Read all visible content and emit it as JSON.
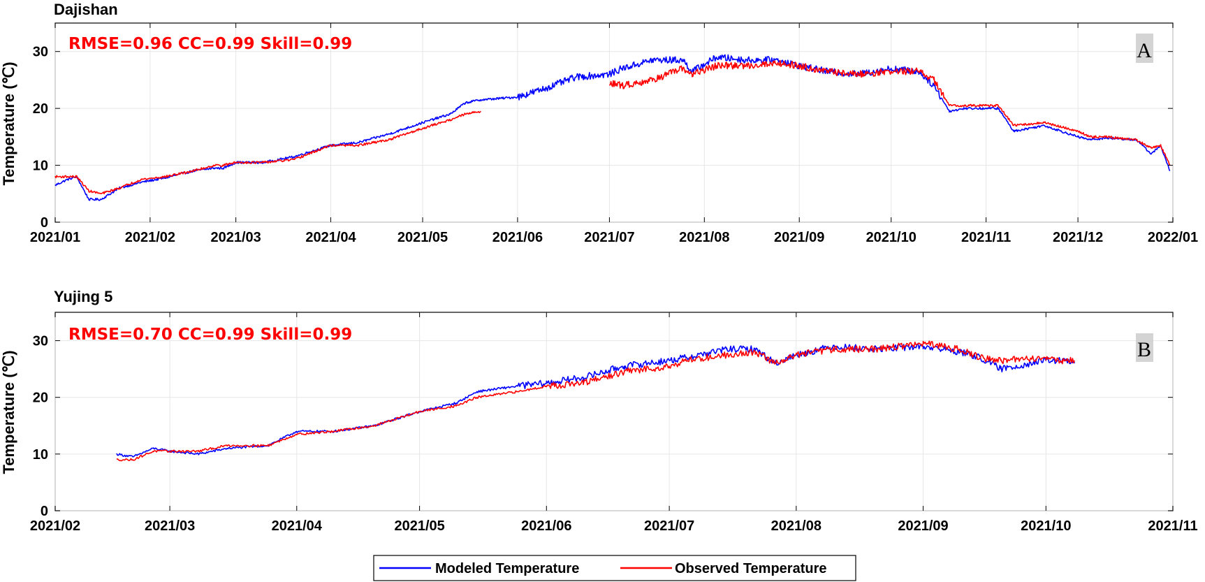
{
  "colors": {
    "modeled": "#0000ff",
    "observed": "#ff0000",
    "metrics_text": "#ff0000",
    "grid": "#e6e6e6",
    "panel_letter_bg": "#d4d4d4"
  },
  "legend": {
    "modeled_label": "Modeled Temperature",
    "observed_label": "Observed Temperature",
    "placement": "bottom-center"
  },
  "chart_data": [
    {
      "type": "line",
      "title": "Dajishan",
      "panel_letter": "A",
      "metrics_text": "RMSE=0.96  CC=0.99   Skill=0.99",
      "xlabel": "",
      "ylabel": "Temperature (℃)",
      "grid": true,
      "xlim": [
        "2021-01-01",
        "2022-01-01"
      ],
      "ylim": [
        0,
        35
      ],
      "yticks": [
        0,
        10,
        20,
        30
      ],
      "xticks": [
        {
          "date": "2021-01-01",
          "label": "2021/01"
        },
        {
          "date": "2021-02-01",
          "label": "2021/02"
        },
        {
          "date": "2021-03-01",
          "label": "2021/03"
        },
        {
          "date": "2021-04-01",
          "label": "2021/04"
        },
        {
          "date": "2021-05-01",
          "label": "2021/05"
        },
        {
          "date": "2021-06-01",
          "label": "2021/06"
        },
        {
          "date": "2021-07-01",
          "label": "2021/07"
        },
        {
          "date": "2021-08-01",
          "label": "2021/08"
        },
        {
          "date": "2021-09-01",
          "label": "2021/09"
        },
        {
          "date": "2021-10-01",
          "label": "2021/10"
        },
        {
          "date": "2021-11-01",
          "label": "2021/11"
        },
        {
          "date": "2021-12-01",
          "label": "2021/12"
        },
        {
          "date": "2022-01-01",
          "label": "2022/01"
        }
      ],
      "series": [
        {
          "name": "Modeled Temperature",
          "x": [
            "2021-01-01",
            "2021-01-05",
            "2021-01-08",
            "2021-01-12",
            "2021-01-16",
            "2021-01-22",
            "2021-01-29",
            "2021-02-06",
            "2021-02-15",
            "2021-02-22",
            "2021-02-25",
            "2021-03-01",
            "2021-03-10",
            "2021-03-20",
            "2021-04-01",
            "2021-04-10",
            "2021-04-20",
            "2021-05-01",
            "2021-05-10",
            "2021-05-15",
            "2021-05-20",
            "2021-06-01",
            "2021-06-10",
            "2021-06-20",
            "2021-07-01",
            "2021-07-05",
            "2021-07-15",
            "2021-07-25",
            "2021-07-28",
            "2021-08-05",
            "2021-08-15",
            "2021-08-25",
            "2021-09-01",
            "2021-09-10",
            "2021-09-20",
            "2021-10-01",
            "2021-10-10",
            "2021-10-15",
            "2021-10-20",
            "2021-10-25",
            "2021-11-01",
            "2021-11-05",
            "2021-11-10",
            "2021-11-20",
            "2021-12-01",
            "2021-12-05",
            "2021-12-10",
            "2021-12-20",
            "2021-12-25",
            "2021-12-28",
            "2021-12-31"
          ],
          "y": [
            6.5,
            7.5,
            8,
            4,
            4,
            6,
            7,
            7.8,
            9,
            9.5,
            9.5,
            10.5,
            10.5,
            11.5,
            13.5,
            14,
            15.5,
            17.5,
            19,
            21,
            21.5,
            22,
            23.5,
            25.5,
            26,
            27,
            28.5,
            28.5,
            26.5,
            29,
            28.5,
            28.5,
            27.5,
            26.5,
            26,
            27,
            26.5,
            24,
            19.5,
            20,
            20,
            20,
            16,
            17,
            15,
            14.5,
            14.8,
            14.5,
            12,
            13.5,
            9
          ]
        },
        {
          "name": "Observed Temperature",
          "x": [
            "2021-01-01",
            "2021-01-05",
            "2021-01-08",
            "2021-01-12",
            "2021-01-16",
            "2021-01-22",
            "2021-01-29",
            "2021-02-06",
            "2021-02-15",
            "2021-02-22",
            "2021-02-25",
            "2021-03-01",
            "2021-03-10",
            "2021-03-20",
            "2021-04-01",
            "2021-04-10",
            "2021-04-20",
            "2021-05-01",
            "2021-05-10",
            "2021-05-15",
            "2021-05-20",
            "2021-06-01",
            "2021-06-10",
            "2021-06-20",
            "2021-07-01",
            "2021-07-05",
            "2021-07-15",
            "2021-07-25",
            "2021-07-28",
            "2021-08-05",
            "2021-08-15",
            "2021-08-25",
            "2021-09-01",
            "2021-09-10",
            "2021-09-20",
            "2021-10-01",
            "2021-10-10",
            "2021-10-15",
            "2021-10-20",
            "2021-10-25",
            "2021-11-01",
            "2021-11-05",
            "2021-11-10",
            "2021-11-20",
            "2021-12-01",
            "2021-12-05",
            "2021-12-10",
            "2021-12-20",
            "2021-12-25",
            "2021-12-28",
            "2021-12-31"
          ],
          "y": [
            8,
            8,
            8,
            5.5,
            5,
            6,
            7.5,
            8,
            9,
            10,
            10,
            10.5,
            10.5,
            11,
            13.5,
            13.5,
            14.5,
            16.5,
            18,
            19,
            19.5,
            null,
            null,
            null,
            24.5,
            24,
            25,
            27,
            26,
            27.5,
            27.5,
            28,
            27.5,
            26.5,
            26,
            26.5,
            26.5,
            25,
            20.5,
            20.5,
            20.5,
            20.5,
            17,
            17.5,
            16,
            15,
            15,
            14.5,
            13,
            13.5,
            10
          ]
        }
      ]
    },
    {
      "type": "line",
      "title": "Yujing 5",
      "panel_letter": "B",
      "metrics_text": "RMSE=0.70  CC=0.99   Skill=0.99",
      "xlabel": "",
      "ylabel": "Temperature (℃)",
      "grid": true,
      "xlim": [
        "2021-02-01",
        "2021-11-01"
      ],
      "ylim": [
        0,
        35
      ],
      "yticks": [
        0,
        10,
        20,
        30
      ],
      "xticks": [
        {
          "date": "2021-02-01",
          "label": "2021/02"
        },
        {
          "date": "2021-03-01",
          "label": "2021/03"
        },
        {
          "date": "2021-04-01",
          "label": "2021/04"
        },
        {
          "date": "2021-05-01",
          "label": "2021/05"
        },
        {
          "date": "2021-06-01",
          "label": "2021/06"
        },
        {
          "date": "2021-07-01",
          "label": "2021/07"
        },
        {
          "date": "2021-08-01",
          "label": "2021/08"
        },
        {
          "date": "2021-09-01",
          "label": "2021/09"
        },
        {
          "date": "2021-10-01",
          "label": "2021/10"
        },
        {
          "date": "2021-11-01",
          "label": "2021/11"
        }
      ],
      "series": [
        {
          "name": "Modeled Temperature",
          "x": [
            "2021-02-16",
            "2021-02-20",
            "2021-02-25",
            "2021-03-01",
            "2021-03-08",
            "2021-03-15",
            "2021-03-25",
            "2021-04-01",
            "2021-04-10",
            "2021-04-20",
            "2021-05-01",
            "2021-05-10",
            "2021-05-15",
            "2021-05-25",
            "2021-06-01",
            "2021-06-10",
            "2021-06-20",
            "2021-07-01",
            "2021-07-05",
            "2021-07-15",
            "2021-07-22",
            "2021-07-27",
            "2021-08-01",
            "2021-08-10",
            "2021-08-20",
            "2021-09-01",
            "2021-09-10",
            "2021-09-15",
            "2021-09-20",
            "2021-10-01",
            "2021-10-05",
            "2021-10-08"
          ],
          "y": [
            10,
            9.5,
            11,
            10.5,
            10,
            11,
            11.5,
            14,
            14,
            15,
            17.5,
            19,
            21,
            22,
            22.5,
            23.5,
            25.5,
            26.5,
            27,
            28.5,
            28.5,
            26,
            27.5,
            29,
            28.5,
            29,
            28,
            27,
            25,
            26.5,
            26.5,
            26
          ]
        },
        {
          "name": "Observed Temperature",
          "x": [
            "2021-02-16",
            "2021-02-20",
            "2021-02-25",
            "2021-03-01",
            "2021-03-08",
            "2021-03-15",
            "2021-03-25",
            "2021-04-01",
            "2021-04-10",
            "2021-04-20",
            "2021-05-01",
            "2021-05-10",
            "2021-05-15",
            "2021-05-25",
            "2021-06-01",
            "2021-06-10",
            "2021-06-20",
            "2021-07-01",
            "2021-07-05",
            "2021-07-15",
            "2021-07-22",
            "2021-07-27",
            "2021-08-01",
            "2021-08-10",
            "2021-08-20",
            "2021-09-01",
            "2021-09-10",
            "2021-09-15",
            "2021-09-20",
            "2021-10-01",
            "2021-10-05",
            "2021-10-08"
          ],
          "y": [
            9,
            9,
            10.5,
            10.5,
            10.5,
            11.5,
            11.5,
            13.5,
            14,
            15,
            17.5,
            18.5,
            20,
            21,
            22,
            22.5,
            24.5,
            25.5,
            26.5,
            27.5,
            28,
            26,
            27.5,
            28.5,
            28.5,
            29.5,
            28.5,
            27,
            26.5,
            27,
            26.5,
            26.5
          ]
        }
      ]
    }
  ]
}
